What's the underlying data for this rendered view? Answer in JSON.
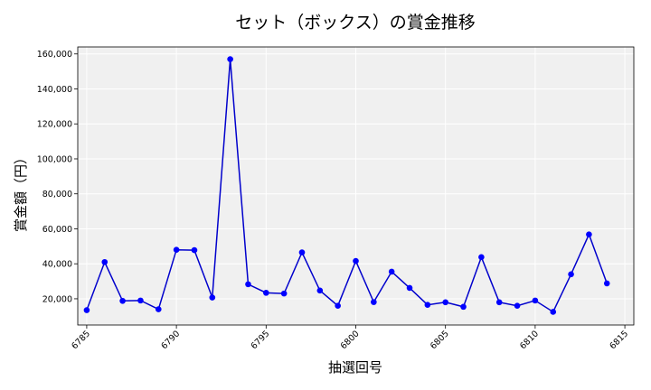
{
  "chart_data": {
    "type": "line",
    "title": "セット（ボックス）の賞金推移",
    "xlabel": "抽選回号",
    "ylabel": "賞金額（円）",
    "xlim": [
      6784.5,
      6815.5
    ],
    "ylim": [
      5000,
      164000
    ],
    "x_ticks": [
      6785,
      6790,
      6795,
      6800,
      6805,
      6810,
      6815
    ],
    "x_tick_labels": [
      "6785",
      "6790",
      "6795",
      "6800",
      "6805",
      "6810",
      "6815"
    ],
    "y_ticks": [
      20000,
      40000,
      60000,
      80000,
      100000,
      120000,
      140000,
      160000
    ],
    "y_tick_labels": [
      "20,000",
      "40,000",
      "60,000",
      "80,000",
      "100,000",
      "120,000",
      "140,000",
      "160,000"
    ],
    "grid": true,
    "colors": {
      "line": "#0000cc",
      "marker": "#0000ff",
      "plot_bg": "#f0f0f0",
      "grid": "#ffffff"
    },
    "series": [
      {
        "x": [
          6785,
          6786,
          6787,
          6788,
          6789,
          6790,
          6791,
          6792,
          6793,
          6794,
          6795,
          6796,
          6797,
          6798,
          6799,
          6800,
          6801,
          6802,
          6803,
          6804,
          6805,
          6806,
          6807,
          6808,
          6809,
          6810,
          6811,
          6812,
          6813,
          6814
        ],
        "values": [
          13500,
          41000,
          18800,
          19000,
          14000,
          48000,
          47800,
          20700,
          157000,
          28300,
          23400,
          23000,
          46500,
          24700,
          16000,
          41600,
          18100,
          35500,
          26200,
          16500,
          18000,
          15400,
          43800,
          18000,
          16000,
          19000,
          12500,
          34000,
          56800,
          28800
        ]
      }
    ]
  }
}
